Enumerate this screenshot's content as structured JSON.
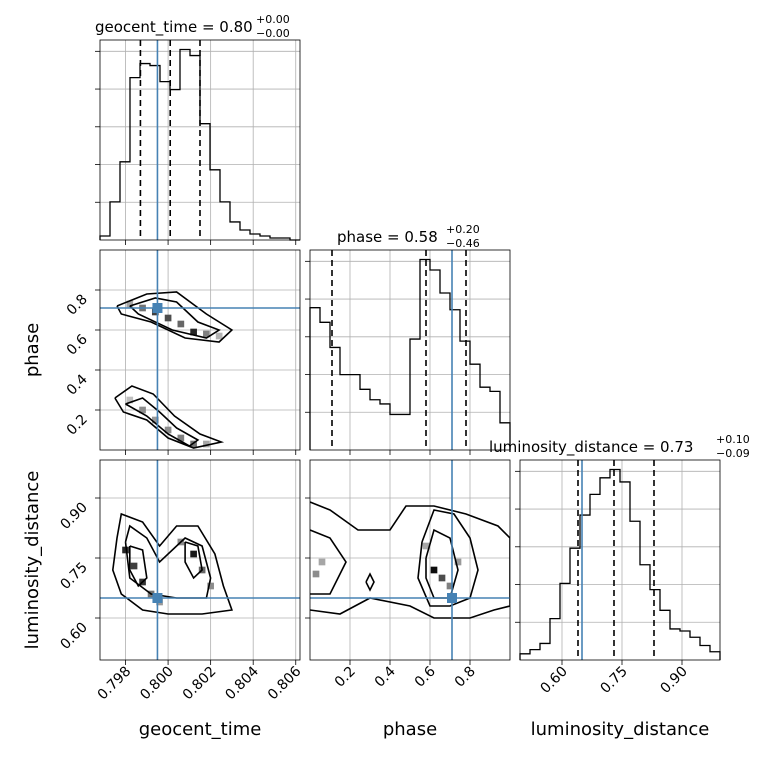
{
  "figure": {
    "type": "corner_plot",
    "background": "#ffffff",
    "truth_color": "#4682b4",
    "hist_color": "#000000"
  },
  "chart_data": {
    "type": "corner",
    "parameters": [
      {
        "name": "geocent_time",
        "axis_label": "geocent_time",
        "range": [
          0.7968,
          0.8062
        ],
        "ticks": [
          0.798,
          0.8,
          0.802,
          0.804,
          0.806
        ],
        "tick_labels": [
          "0.798",
          "0.800",
          "0.802",
          "0.804",
          "0.806"
        ],
        "truth": 0.7995,
        "title": {
          "main": "geocent_time = 0.80",
          "plus": "+0.00",
          "minus": "−0.00"
        },
        "quantiles": [
          0.7987,
          0.8001,
          0.8015
        ],
        "hist": {
          "edges": [
            0.7968,
            0.79727,
            0.79774,
            0.79821,
            0.79868,
            0.79915,
            0.79962,
            0.80009,
            0.80056,
            0.80103,
            0.8015,
            0.80197,
            0.80244,
            0.80291,
            0.80338,
            0.80385,
            0.80432,
            0.80479,
            0.80526,
            0.80573,
            0.8062
          ],
          "counts": [
            0.02,
            0.19,
            0.39,
            0.81,
            0.88,
            0.87,
            0.79,
            0.75,
            0.95,
            0.92,
            0.58,
            0.35,
            0.19,
            0.09,
            0.05,
            0.03,
            0.02,
            0.01,
            0.01,
            0.0
          ]
        }
      },
      {
        "name": "phase",
        "axis_label": "phase",
        "range": [
          0.0,
          1.0
        ],
        "ticks": [
          0.2,
          0.4,
          0.6,
          0.8
        ],
        "tick_labels": [
          "0.2",
          "0.4",
          "0.6",
          "0.8"
        ],
        "truth": 0.71,
        "title": {
          "main": "phase = 0.58",
          "plus": "+0.20",
          "minus": "−0.46"
        },
        "quantiles": [
          0.11,
          0.58,
          0.78
        ],
        "hist": {
          "edges": [
            0.0,
            0.05,
            0.1,
            0.15,
            0.2,
            0.25,
            0.3,
            0.35,
            0.4,
            0.45,
            0.5,
            0.55,
            0.6,
            0.65,
            0.7,
            0.75,
            0.8,
            0.85,
            0.9,
            0.95,
            1.0
          ],
          "counts": [
            0.68,
            0.61,
            0.49,
            0.36,
            0.36,
            0.29,
            0.24,
            0.22,
            0.17,
            0.17,
            0.53,
            0.91,
            0.86,
            0.75,
            0.67,
            0.52,
            0.41,
            0.3,
            0.28,
            0.13
          ]
        }
      },
      {
        "name": "luminosity_distance",
        "axis_label": "luminosity_distance",
        "range": [
          0.495,
          0.995
        ],
        "ticks": [
          0.6,
          0.75,
          0.9
        ],
        "tick_labels": [
          "0.60",
          "0.75",
          "0.90"
        ],
        "truth": 0.65,
        "title": {
          "main": "luminosity_distance = 0.73",
          "plus": "+0.10",
          "minus": "−0.09"
        },
        "quantiles": [
          0.64,
          0.73,
          0.83
        ],
        "hist": {
          "edges": [
            0.495,
            0.52,
            0.545,
            0.57,
            0.595,
            0.62,
            0.645,
            0.67,
            0.695,
            0.72,
            0.745,
            0.77,
            0.795,
            0.82,
            0.845,
            0.87,
            0.895,
            0.92,
            0.945,
            0.97,
            0.995
          ],
          "counts": [
            0.03,
            0.05,
            0.08,
            0.2,
            0.37,
            0.54,
            0.7,
            0.8,
            0.88,
            0.92,
            0.86,
            0.67,
            0.46,
            0.34,
            0.24,
            0.15,
            0.14,
            0.11,
            0.07,
            0.04
          ]
        }
      }
    ],
    "pairs": [
      {
        "x_param": "geocent_time",
        "y_param": "phase",
        "truth": [
          0.7995,
          0.71
        ],
        "density_cells": [
          {
            "x": 0.7982,
            "y": 0.73,
            "v": 0.35
          },
          {
            "x": 0.7988,
            "y": 0.71,
            "v": 0.55
          },
          {
            "x": 0.7994,
            "y": 0.69,
            "v": 0.75
          },
          {
            "x": 0.8,
            "y": 0.66,
            "v": 0.7
          },
          {
            "x": 0.8006,
            "y": 0.63,
            "v": 0.6
          },
          {
            "x": 0.8012,
            "y": 0.59,
            "v": 0.85
          },
          {
            "x": 0.8018,
            "y": 0.58,
            "v": 0.5
          },
          {
            "x": 0.8024,
            "y": 0.57,
            "v": 0.3
          },
          {
            "x": 0.7982,
            "y": 0.25,
            "v": 0.25
          },
          {
            "x": 0.7988,
            "y": 0.2,
            "v": 0.45
          },
          {
            "x": 0.7994,
            "y": 0.15,
            "v": 0.4
          },
          {
            "x": 0.8,
            "y": 0.1,
            "v": 0.45
          },
          {
            "x": 0.8006,
            "y": 0.06,
            "v": 0.5
          },
          {
            "x": 0.8012,
            "y": 0.03,
            "v": 0.55
          },
          {
            "x": 0.8018,
            "y": 0.03,
            "v": 0.35
          }
        ],
        "contours": [
          [
            [
              0.7976,
              0.72
            ],
            [
              0.799,
              0.78
            ],
            [
              0.8004,
              0.79
            ],
            [
              0.8018,
              0.68
            ],
            [
              0.803,
              0.6
            ],
            [
              0.8024,
              0.54
            ],
            [
              0.8008,
              0.56
            ],
            [
              0.7992,
              0.64
            ],
            [
              0.7978,
              0.68
            ],
            [
              0.7976,
              0.72
            ]
          ],
          [
            [
              0.7982,
              0.72
            ],
            [
              0.7994,
              0.76
            ],
            [
              0.8004,
              0.74
            ],
            [
              0.8014,
              0.64
            ],
            [
              0.8024,
              0.6
            ],
            [
              0.8018,
              0.56
            ],
            [
              0.8002,
              0.6
            ],
            [
              0.7986,
              0.68
            ],
            [
              0.7982,
              0.72
            ]
          ],
          [
            [
              0.7975,
              0.26
            ],
            [
              0.7983,
              0.32
            ],
            [
              0.7993,
              0.28
            ],
            [
              0.8003,
              0.17
            ],
            [
              0.8015,
              0.08
            ],
            [
              0.8025,
              0.04
            ],
            [
              0.8012,
              0.01
            ],
            [
              0.8,
              0.06
            ],
            [
              0.799,
              0.15
            ],
            [
              0.7979,
              0.19
            ],
            [
              0.7975,
              0.26
            ]
          ],
          [
            [
              0.798,
              0.23
            ],
            [
              0.7988,
              0.26
            ],
            [
              0.7996,
              0.19
            ],
            [
              0.8004,
              0.11
            ],
            [
              0.8014,
              0.05
            ],
            [
              0.801,
              0.02
            ],
            [
              0.8,
              0.08
            ],
            [
              0.799,
              0.17
            ],
            [
              0.798,
              0.23
            ]
          ]
        ]
      },
      {
        "x_param": "geocent_time",
        "y_param": "luminosity_distance",
        "truth": [
          0.7995,
          0.65
        ],
        "density_cells": [
          {
            "x": 0.798,
            "y": 0.77,
            "v": 0.85
          },
          {
            "x": 0.7984,
            "y": 0.73,
            "v": 0.75
          },
          {
            "x": 0.7988,
            "y": 0.69,
            "v": 0.8
          },
          {
            "x": 0.7992,
            "y": 0.66,
            "v": 0.55
          },
          {
            "x": 0.7996,
            "y": 0.64,
            "v": 0.4
          },
          {
            "x": 0.8006,
            "y": 0.79,
            "v": 0.45
          },
          {
            "x": 0.8012,
            "y": 0.76,
            "v": 0.9
          },
          {
            "x": 0.8016,
            "y": 0.72,
            "v": 0.6
          },
          {
            "x": 0.802,
            "y": 0.68,
            "v": 0.45
          }
        ],
        "contours": [
          [
            [
              0.7976,
              0.8
            ],
            [
              0.7978,
              0.86
            ],
            [
              0.7988,
              0.84
            ],
            [
              0.7996,
              0.78
            ],
            [
              0.8004,
              0.83
            ],
            [
              0.8014,
              0.83
            ],
            [
              0.8022,
              0.76
            ],
            [
              0.8026,
              0.68
            ],
            [
              0.803,
              0.62
            ],
            [
              0.8016,
              0.61
            ],
            [
              0.8,
              0.61
            ],
            [
              0.7988,
              0.62
            ],
            [
              0.7978,
              0.66
            ],
            [
              0.7974,
              0.72
            ],
            [
              0.7976,
              0.8
            ]
          ],
          [
            [
              0.798,
              0.79
            ],
            [
              0.7982,
              0.83
            ],
            [
              0.799,
              0.8
            ],
            [
              0.7996,
              0.74
            ],
            [
              0.8008,
              0.8
            ],
            [
              0.8016,
              0.78
            ],
            [
              0.802,
              0.7
            ],
            [
              0.8018,
              0.65
            ],
            [
              0.8004,
              0.65
            ],
            [
              0.7992,
              0.66
            ],
            [
              0.7982,
              0.7
            ],
            [
              0.798,
              0.79
            ]
          ],
          [
            [
              0.7982,
              0.78
            ],
            [
              0.7988,
              0.77
            ],
            [
              0.799,
              0.7
            ],
            [
              0.7986,
              0.68
            ],
            [
              0.7982,
              0.72
            ],
            [
              0.7982,
              0.78
            ]
          ],
          [
            [
              0.8008,
              0.79
            ],
            [
              0.8014,
              0.78
            ],
            [
              0.8016,
              0.72
            ],
            [
              0.8012,
              0.7
            ],
            [
              0.8008,
              0.74
            ],
            [
              0.8008,
              0.79
            ]
          ]
        ]
      },
      {
        "x_param": "phase",
        "y_param": "luminosity_distance",
        "truth": [
          0.71,
          0.65
        ],
        "density_cells": [
          {
            "x": 0.03,
            "y": 0.71,
            "v": 0.45
          },
          {
            "x": 0.06,
            "y": 0.74,
            "v": 0.35
          },
          {
            "x": 0.58,
            "y": 0.78,
            "v": 0.35
          },
          {
            "x": 0.62,
            "y": 0.72,
            "v": 0.95
          },
          {
            "x": 0.66,
            "y": 0.7,
            "v": 0.7
          },
          {
            "x": 0.7,
            "y": 0.68,
            "v": 0.5
          },
          {
            "x": 0.74,
            "y": 0.74,
            "v": 0.4
          }
        ],
        "contours": [
          [
            [
              0.0,
              0.89
            ],
            [
              0.1,
              0.87
            ],
            [
              0.24,
              0.82
            ],
            [
              0.4,
              0.82
            ],
            [
              0.48,
              0.88
            ],
            [
              0.62,
              0.88
            ],
            [
              0.78,
              0.86
            ],
            [
              0.94,
              0.83
            ],
            [
              1.0,
              0.8
            ],
            [
              1.0,
              0.63
            ],
            [
              0.92,
              0.62
            ],
            [
              0.8,
              0.6
            ],
            [
              0.62,
              0.6
            ],
            [
              0.5,
              0.63
            ],
            [
              0.3,
              0.65
            ],
            [
              0.15,
              0.61
            ],
            [
              0.0,
              0.62
            ]
          ],
          [
            [
              0.0,
              0.82
            ],
            [
              0.1,
              0.8
            ],
            [
              0.18,
              0.74
            ],
            [
              0.1,
              0.66
            ],
            [
              0.0,
              0.66
            ]
          ],
          [
            [
              0.56,
              0.79
            ],
            [
              0.62,
              0.87
            ],
            [
              0.72,
              0.86
            ],
            [
              0.8,
              0.8
            ],
            [
              0.84,
              0.72
            ],
            [
              0.8,
              0.65
            ],
            [
              0.7,
              0.63
            ],
            [
              0.6,
              0.63
            ],
            [
              0.54,
              0.7
            ],
            [
              0.56,
              0.79
            ]
          ],
          [
            [
              0.58,
              0.75
            ],
            [
              0.62,
              0.82
            ],
            [
              0.7,
              0.8
            ],
            [
              0.74,
              0.72
            ],
            [
              0.7,
              0.65
            ],
            [
              0.62,
              0.65
            ],
            [
              0.58,
              0.7
            ],
            [
              0.58,
              0.75
            ]
          ],
          [
            [
              0.28,
              0.69
            ],
            [
              0.3,
              0.71
            ],
            [
              0.32,
              0.69
            ],
            [
              0.3,
              0.67
            ],
            [
              0.28,
              0.69
            ]
          ]
        ]
      }
    ]
  }
}
